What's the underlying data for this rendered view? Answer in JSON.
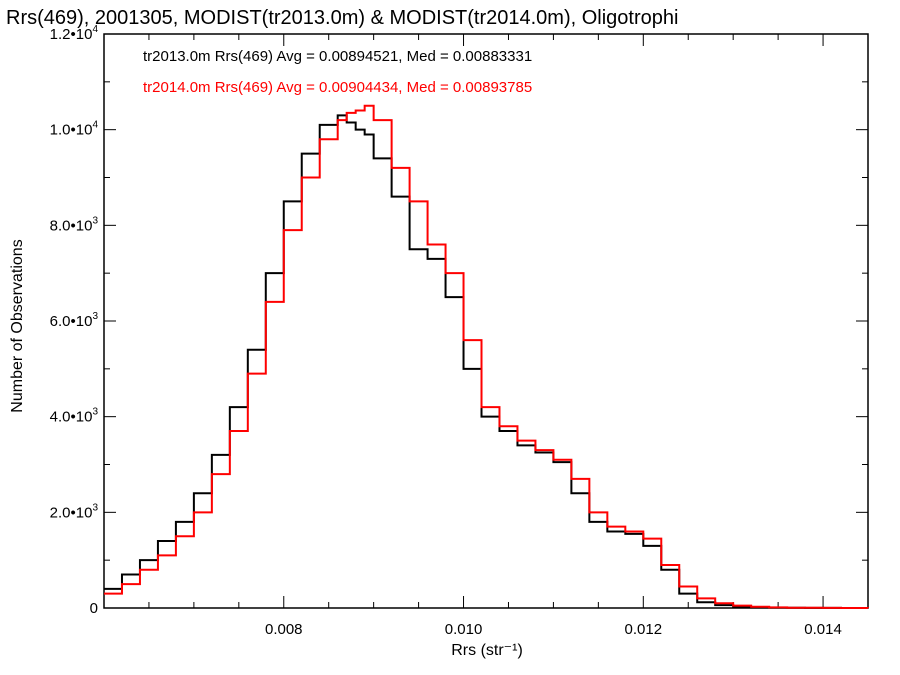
{
  "chart_data": {
    "type": "line",
    "title": "Rrs(469), 2001305, MODIST(tr2013.0m) & MODIST(tr2014.0m), Oligotrophi",
    "xlabel": "Rrs (str⁻¹)",
    "ylabel": "Number of Observations",
    "xlim": [
      0.006,
      0.0145
    ],
    "ylim": [
      0,
      12000
    ],
    "step": true,
    "grid": false,
    "x_ticks": [
      0.008,
      0.01,
      0.012,
      0.014
    ],
    "x_tick_labels": [
      "0.008",
      "0.010",
      "0.012",
      "0.014"
    ],
    "y_tick_labels": [
      {
        "value": 0,
        "mantissa": "0",
        "exp": ""
      },
      {
        "value": 2000,
        "mantissa": "2.0•10",
        "exp": "3"
      },
      {
        "value": 4000,
        "mantissa": "4.0•10",
        "exp": "3"
      },
      {
        "value": 6000,
        "mantissa": "6.0•10",
        "exp": "3"
      },
      {
        "value": 8000,
        "mantissa": "8.0•10",
        "exp": "3"
      },
      {
        "value": 10000,
        "mantissa": "1.0•10",
        "exp": "4"
      },
      {
        "value": 12000,
        "mantissa": "1.2•10",
        "exp": "4"
      }
    ],
    "annotations": [
      {
        "text": "tr2013.0m Rrs(469) Avg = 0.00894521, Med = 0.00883331",
        "color": "#000000"
      },
      {
        "text": "tr2014.0m Rrs(469) Avg = 0.00904434, Med = 0.00893785",
        "color": "#ff0000"
      }
    ],
    "series": [
      {
        "color": "#000000",
        "x": [
          0.006,
          0.0062,
          0.0064,
          0.0066,
          0.0068,
          0.007,
          0.0072,
          0.0074,
          0.0076,
          0.0078,
          0.008,
          0.0082,
          0.0084,
          0.0086,
          0.0087,
          0.0088,
          0.0089,
          0.009,
          0.0092,
          0.0094,
          0.0096,
          0.0098,
          0.01,
          0.0102,
          0.0104,
          0.0106,
          0.0108,
          0.011,
          0.0112,
          0.0114,
          0.0116,
          0.0118,
          0.012,
          0.0122,
          0.0124,
          0.0126,
          0.0128,
          0.013,
          0.0132,
          0.0134,
          0.0136,
          0.0138,
          0.014,
          0.0142,
          0.0145
        ],
        "y": [
          400,
          700,
          1000,
          1400,
          1800,
          2400,
          3200,
          4200,
          5400,
          7000,
          8500,
          9500,
          10100,
          10300,
          10150,
          10000,
          9900,
          9400,
          8600,
          7500,
          7300,
          6500,
          5000,
          4000,
          3700,
          3400,
          3250,
          3050,
          2400,
          1800,
          1600,
          1550,
          1300,
          800,
          300,
          120,
          60,
          30,
          15,
          8,
          5,
          3,
          2,
          1,
          0
        ]
      },
      {
        "color": "#ff0000",
        "x": [
          0.006,
          0.0062,
          0.0064,
          0.0066,
          0.0068,
          0.007,
          0.0072,
          0.0074,
          0.0076,
          0.0078,
          0.008,
          0.0082,
          0.0084,
          0.0086,
          0.0087,
          0.0088,
          0.0089,
          0.009,
          0.0092,
          0.0094,
          0.0096,
          0.0098,
          0.01,
          0.0102,
          0.0104,
          0.0106,
          0.0108,
          0.011,
          0.0112,
          0.0114,
          0.0116,
          0.0118,
          0.012,
          0.0122,
          0.0124,
          0.0126,
          0.0128,
          0.013,
          0.0132,
          0.0134,
          0.0136,
          0.0138,
          0.014,
          0.0142,
          0.0145
        ],
        "y": [
          300,
          500,
          800,
          1100,
          1500,
          2000,
          2800,
          3700,
          4900,
          6400,
          7900,
          9000,
          9800,
          10200,
          10350,
          10400,
          10500,
          10200,
          9200,
          8500,
          7600,
          7000,
          5600,
          4200,
          3800,
          3500,
          3300,
          3100,
          2700,
          2000,
          1700,
          1600,
          1450,
          900,
          450,
          200,
          100,
          50,
          25,
          12,
          6,
          4,
          2,
          1,
          0
        ]
      }
    ]
  }
}
